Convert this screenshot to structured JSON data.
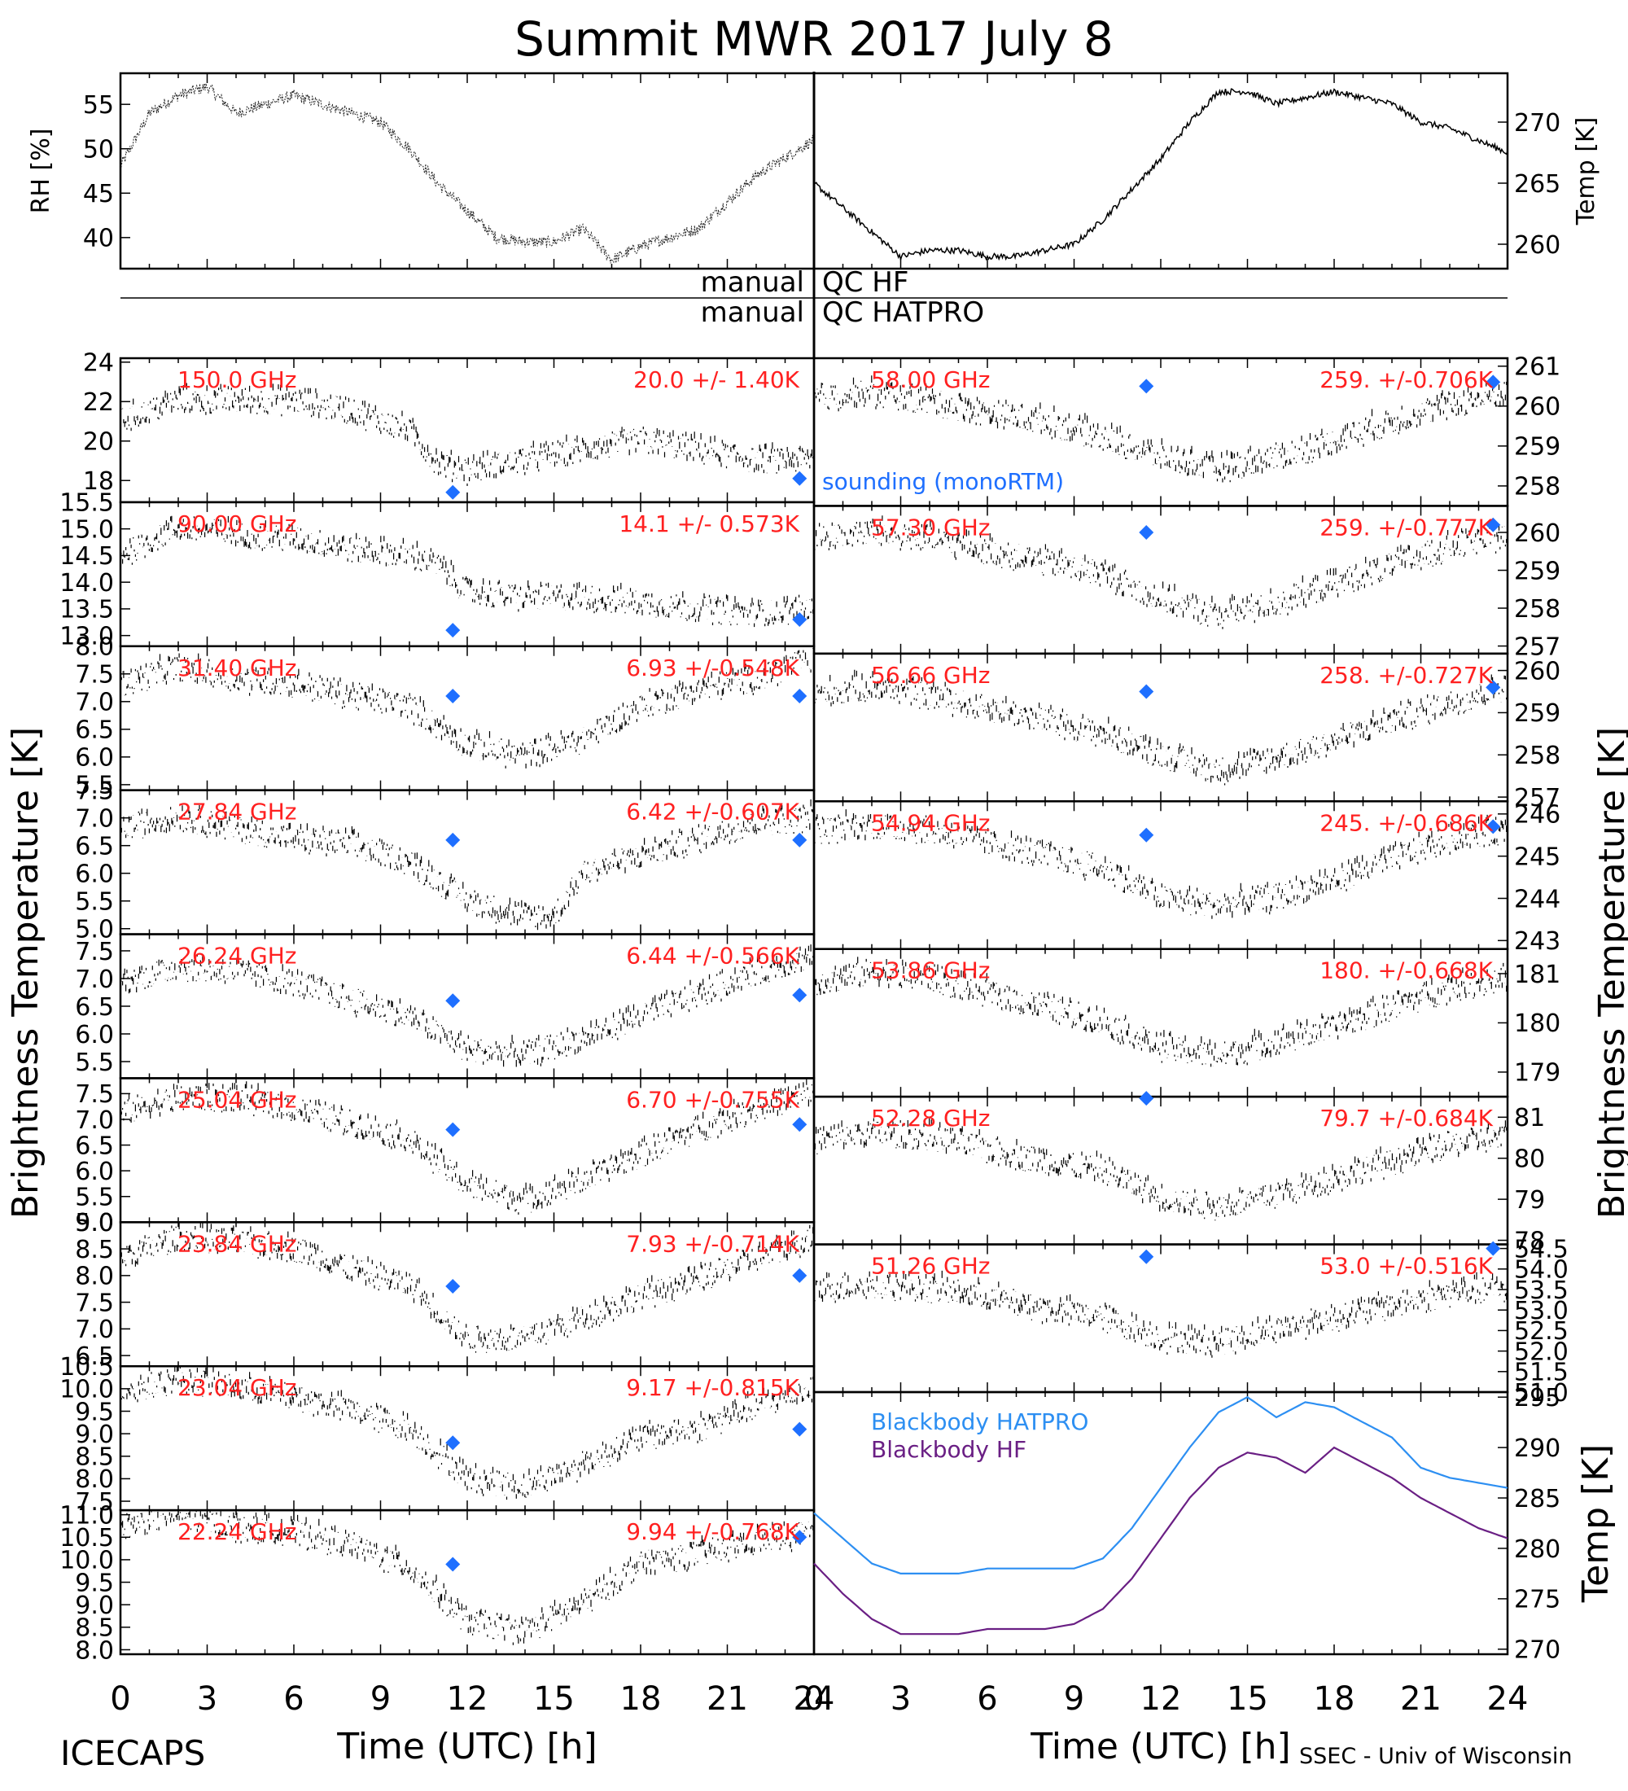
{
  "title": "Summit MWR 2017 July  8",
  "footer": {
    "left": "ICECAPS",
    "right": "SSEC - Univ of Wisconsin"
  },
  "qc": {
    "left_1": "manual",
    "right_1": "QC HF",
    "left_2": "manual",
    "right_2": "QC HATPRO"
  },
  "colors": {
    "label": "#ff2020",
    "sounding": "#1e6fff",
    "bb_hatpro": "#2d8ff2",
    "bb_hf": "#6a1f84",
    "data": "#000000"
  },
  "legend": {
    "sounding": "sounding (monoRTM)",
    "bb_hatpro": "Blackbody HATPRO",
    "bb_hf": "Blackbody HF"
  },
  "axes": {
    "ylabel_left": "Brightness Temperature [K]",
    "ylabel_right": "Brightness Temperature [K]",
    "xlabel": "Time (UTC) [h]",
    "xticks": [
      "0",
      "3",
      "6",
      "9",
      "12",
      "15",
      "18",
      "21",
      "24"
    ]
  },
  "chart_data": [
    {
      "type": "line",
      "id": "rh",
      "ylabel": "RH [%]",
      "xlim": [
        0,
        24
      ],
      "ylim": [
        36.5,
        58.5
      ],
      "yticks": [
        40,
        45,
        50,
        55
      ],
      "x": [
        0,
        1,
        2,
        3,
        4,
        5,
        6,
        7,
        8,
        9,
        10,
        11,
        12,
        13,
        14,
        15,
        16,
        17,
        18,
        19,
        20,
        21,
        22,
        23,
        24
      ],
      "y": [
        48,
        54,
        56,
        57,
        54,
        55,
        56,
        55,
        54,
        53,
        50,
        46,
        43,
        40,
        39.5,
        39.5,
        41,
        37.5,
        39,
        40,
        41,
        44,
        47,
        49,
        51
      ]
    },
    {
      "type": "line",
      "id": "temp",
      "ylabel": "Temp [K]",
      "xlim": [
        0,
        24
      ],
      "ylim": [
        258,
        274
      ],
      "yticks": [
        260,
        265,
        270
      ],
      "x": [
        0,
        1,
        2,
        3,
        4,
        5,
        6,
        7,
        8,
        9,
        10,
        11,
        12,
        13,
        14,
        15,
        16,
        17,
        18,
        19,
        20,
        21,
        22,
        23,
        24
      ],
      "y": [
        265,
        263,
        261,
        259,
        259.5,
        259.5,
        259,
        259,
        259.5,
        260,
        262,
        264.5,
        267,
        270,
        272.5,
        272.5,
        271.5,
        272,
        272.5,
        272,
        271.5,
        270,
        269.5,
        268.5,
        267.5
      ]
    },
    {
      "type": "scatter",
      "id": "c150",
      "channel": "150.0 GHz",
      "stat": "20.0 +/-  1.40K",
      "ylim": [
        16.9,
        24.2
      ],
      "yticks": [
        "18",
        "20",
        "22",
        "24"
      ],
      "ytick_vals": [
        18,
        20,
        22,
        24
      ],
      "x": [
        0,
        2,
        4,
        6,
        8,
        10,
        11,
        12,
        14,
        16,
        18,
        20,
        22,
        24
      ],
      "y": [
        21,
        22,
        22,
        22,
        21.5,
        20.5,
        18.8,
        18.5,
        19,
        19.5,
        20,
        19.5,
        19,
        19
      ],
      "sounding": [
        [
          11.5,
          17.4
        ],
        [
          23.5,
          18.1
        ]
      ],
      "legend": true
    },
    {
      "type": "scatter",
      "id": "c90",
      "channel": "90.00 GHz",
      "stat": "14.1 +/- 0.573K",
      "ylim": [
        12.8,
        15.5
      ],
      "yticks": [
        "13.0",
        "13.5",
        "14.0",
        "14.5",
        "15.0",
        "15.5"
      ],
      "ytick_vals": [
        13,
        13.5,
        14,
        14.5,
        15,
        15.5
      ],
      "x": [
        0,
        2,
        4,
        6,
        8,
        10,
        11,
        12,
        14,
        16,
        18,
        20,
        22,
        24
      ],
      "y": [
        14.5,
        15,
        14.9,
        14.8,
        14.6,
        14.5,
        14.3,
        13.8,
        13.7,
        13.7,
        13.6,
        13.5,
        13.4,
        13.5
      ],
      "sounding": [
        [
          11.5,
          13.1
        ],
        [
          23.5,
          13.3
        ]
      ]
    },
    {
      "type": "scatter",
      "id": "c3140",
      "channel": "31.40 GHz",
      "stat": "6.93 +/-0.548K",
      "ylim": [
        5.4,
        8.0
      ],
      "yticks": [
        "5.5",
        "6.0",
        "6.5",
        "7.0",
        "7.5",
        "8.0"
      ],
      "ytick_vals": [
        5.5,
        6,
        6.5,
        7,
        7.5,
        8
      ],
      "x": [
        0,
        2,
        4,
        6,
        8,
        10,
        12,
        14,
        16,
        18,
        20,
        22,
        24
      ],
      "y": [
        7.3,
        7.6,
        7.4,
        7.3,
        7.1,
        6.9,
        6.2,
        6.0,
        6.3,
        6.9,
        7.2,
        7.4,
        7.8
      ],
      "sounding": [
        [
          11.5,
          7.1
        ],
        [
          23.5,
          7.1
        ]
      ]
    },
    {
      "type": "scatter",
      "id": "c2784",
      "channel": "27.84 GHz",
      "stat": "6.42 +/-0.607K",
      "ylim": [
        4.9,
        7.5
      ],
      "yticks": [
        "5.0",
        "5.5",
        "6.0",
        "6.5",
        "7.0",
        "7.5"
      ],
      "ytick_vals": [
        5,
        5.5,
        6,
        6.5,
        7,
        7.5
      ],
      "x": [
        0,
        2,
        4,
        6,
        8,
        10,
        12,
        14,
        15,
        16,
        18,
        20,
        22,
        24
      ],
      "y": [
        6.8,
        7.0,
        6.8,
        6.6,
        6.5,
        6.2,
        5.5,
        5.2,
        5.2,
        6.0,
        6.3,
        6.6,
        6.9,
        7.0
      ],
      "sounding": [
        [
          11.5,
          6.6
        ],
        [
          23.5,
          6.6
        ]
      ]
    },
    {
      "type": "scatter",
      "id": "c2624",
      "channel": "26.24 GHz",
      "stat": "6.44 +/-0.566K",
      "ylim": [
        5.2,
        7.8
      ],
      "yticks": [
        "5.5",
        "6.0",
        "6.5",
        "7.0",
        "7.5"
      ],
      "ytick_vals": [
        5.5,
        6,
        6.5,
        7,
        7.5
      ],
      "x": [
        0,
        2,
        4,
        6,
        8,
        10,
        12,
        14,
        16,
        18,
        20,
        22,
        24
      ],
      "y": [
        6.9,
        7.2,
        7.1,
        6.9,
        6.6,
        6.3,
        5.7,
        5.6,
        5.9,
        6.3,
        6.7,
        7.1,
        7.4
      ],
      "sounding": [
        [
          11.5,
          6.6
        ],
        [
          23.5,
          6.7
        ]
      ]
    },
    {
      "type": "scatter",
      "id": "c2504",
      "channel": "25.04 GHz",
      "stat": "6.70 +/-0.755K",
      "ylim": [
        5.0,
        7.8
      ],
      "yticks": [
        "5.0",
        "5.5",
        "6.0",
        "6.5",
        "7.0",
        "7.5"
      ],
      "ytick_vals": [
        5,
        5.5,
        6,
        6.5,
        7,
        7.5
      ],
      "x": [
        0,
        2,
        4,
        6,
        8,
        10,
        12,
        14,
        16,
        18,
        20,
        22,
        24
      ],
      "y": [
        7.1,
        7.4,
        7.4,
        7.2,
        6.9,
        6.6,
        5.7,
        5.4,
        5.8,
        6.3,
        6.8,
        7.2,
        7.5
      ],
      "sounding": [
        [
          11.5,
          6.8
        ],
        [
          23.5,
          6.9
        ]
      ]
    },
    {
      "type": "scatter",
      "id": "c2384",
      "channel": "23.84 GHz",
      "stat": "7.93 +/-0.714K",
      "ylim": [
        6.3,
        9.0
      ],
      "yticks": [
        "6.5",
        "7.0",
        "7.5",
        "8.0",
        "8.5",
        "9.0"
      ],
      "ytick_vals": [
        6.5,
        7,
        7.5,
        8,
        8.5,
        9
      ],
      "x": [
        0,
        2,
        4,
        6,
        8,
        10,
        12,
        14,
        16,
        18,
        20,
        22,
        24
      ],
      "y": [
        8.3,
        8.7,
        8.6,
        8.5,
        8.1,
        7.8,
        6.8,
        6.8,
        7.2,
        7.6,
        7.9,
        8.3,
        8.7
      ],
      "sounding": [
        [
          11.5,
          7.8
        ],
        [
          23.5,
          8.0
        ]
      ]
    },
    {
      "type": "scatter",
      "id": "c2304",
      "channel": "23.04 GHz",
      "stat": "9.17 +/-0.815K",
      "ylim": [
        7.3,
        10.5
      ],
      "yticks": [
        "7.5",
        "8.0",
        "8.5",
        "9.0",
        "9.5",
        "10.0",
        "10.5"
      ],
      "ytick_vals": [
        7.5,
        8,
        8.5,
        9,
        9.5,
        10,
        10.5
      ],
      "x": [
        0,
        2,
        4,
        6,
        8,
        10,
        12,
        14,
        16,
        18,
        20,
        22,
        24
      ],
      "y": [
        9.9,
        10.2,
        10.0,
        9.8,
        9.5,
        9.1,
        8.0,
        7.8,
        8.3,
        8.9,
        9.1,
        9.6,
        10.0
      ],
      "sounding": [
        [
          11.5,
          8.8
        ],
        [
          23.5,
          9.1
        ]
      ]
    },
    {
      "type": "scatter",
      "id": "c2224",
      "channel": "22.24 GHz",
      "stat": "9.94 +/-0.768K",
      "ylim": [
        7.9,
        11.1
      ],
      "yticks": [
        "8.0",
        "8.5",
        "9.0",
        "9.5",
        "10.0",
        "10.5",
        "11.0"
      ],
      "ytick_vals": [
        8,
        8.5,
        9,
        9.5,
        10,
        10.5,
        11
      ],
      "x": [
        0,
        2,
        4,
        6,
        8,
        10,
        12,
        14,
        16,
        18,
        20,
        22,
        24
      ],
      "y": [
        10.7,
        11.0,
        10.7,
        10.6,
        10.3,
        9.8,
        8.6,
        8.4,
        9.0,
        9.9,
        10.1,
        10.4,
        10.6
      ],
      "sounding": [
        [
          11.5,
          9.9
        ],
        [
          23.5,
          10.5
        ]
      ]
    },
    {
      "type": "scatter",
      "id": "c5800",
      "channel": "58.00 GHz",
      "stat": "259. +/-0.706K",
      "ylim": [
        257.5,
        261.2
      ],
      "yticks": [
        "258",
        "259",
        "260",
        "261"
      ],
      "ytick_vals": [
        258,
        259,
        260,
        261
      ],
      "x": [
        0,
        2,
        4,
        6,
        8,
        10,
        12,
        14,
        16,
        18,
        20,
        22,
        24
      ],
      "y": [
        260.2,
        260.3,
        260.1,
        259.8,
        259.6,
        259.2,
        258.7,
        258.4,
        258.7,
        259.1,
        259.6,
        260.0,
        260.3
      ],
      "sounding": [
        [
          11.5,
          260.5
        ],
        [
          23.5,
          260.6
        ]
      ]
    },
    {
      "type": "scatter",
      "id": "c5730",
      "channel": "57.30 GHz",
      "stat": "259. +/-0.777K",
      "ylim": [
        256.8,
        260.7
      ],
      "yticks": [
        "257",
        "258",
        "259",
        "260"
      ],
      "ytick_vals": [
        257,
        258,
        259,
        260
      ],
      "x": [
        0,
        2,
        4,
        6,
        8,
        10,
        12,
        14,
        16,
        18,
        20,
        22,
        24
      ],
      "y": [
        259.8,
        260.0,
        259.8,
        259.5,
        259.2,
        258.9,
        258.2,
        257.8,
        258.1,
        258.6,
        259.1,
        259.6,
        259.9
      ],
      "sounding": [
        [
          11.5,
          260.0
        ],
        [
          23.5,
          260.2
        ]
      ]
    },
    {
      "type": "scatter",
      "id": "c5666",
      "channel": "56.66 GHz",
      "stat": "258. +/-0.727K",
      "ylim": [
        256.9,
        260.4
      ],
      "yticks": [
        "257",
        "258",
        "259",
        "260"
      ],
      "ytick_vals": [
        257,
        258,
        259,
        260
      ],
      "x": [
        0,
        2,
        4,
        6,
        8,
        10,
        12,
        14,
        16,
        18,
        20,
        22,
        24
      ],
      "y": [
        259.4,
        259.6,
        259.4,
        259.1,
        258.8,
        258.5,
        258.0,
        257.6,
        257.9,
        258.3,
        258.8,
        259.2,
        259.6
      ],
      "sounding": [
        [
          11.5,
          259.5
        ],
        [
          23.5,
          259.6
        ]
      ]
    },
    {
      "type": "scatter",
      "id": "c5494",
      "channel": "54.94 GHz",
      "stat": "245. +/-0.686K",
      "ylim": [
        242.8,
        246.3
      ],
      "yticks": [
        "243",
        "244",
        "245",
        "246"
      ],
      "ytick_vals": [
        243,
        244,
        245,
        246
      ],
      "x": [
        0,
        2,
        4,
        6,
        8,
        10,
        12,
        14,
        16,
        18,
        20,
        22,
        24
      ],
      "y": [
        245.6,
        245.7,
        245.6,
        245.3,
        245.0,
        244.7,
        244.0,
        243.8,
        244.0,
        244.4,
        244.9,
        245.4,
        245.6
      ],
      "sounding": [
        [
          11.5,
          245.5
        ],
        [
          23.5,
          245.7
        ]
      ]
    },
    {
      "type": "scatter",
      "id": "c5386",
      "channel": "53.86 GHz",
      "stat": "180. +/-0.668K",
      "ylim": [
        178.5,
        181.5
      ],
      "yticks": [
        "179",
        "180",
        "181"
      ],
      "ytick_vals": [
        179,
        180,
        181
      ],
      "x": [
        0,
        2,
        4,
        6,
        8,
        10,
        12,
        14,
        16,
        18,
        20,
        22,
        24
      ],
      "y": [
        180.8,
        181.0,
        180.9,
        180.6,
        180.3,
        180.0,
        179.5,
        179.3,
        179.6,
        179.9,
        180.3,
        180.7,
        180.9
      ],
      "sounding": []
    },
    {
      "type": "scatter",
      "id": "c5228",
      "channel": "52.28 GHz",
      "stat": "79.7 +/-0.684K",
      "ylim": [
        77.9,
        81.5
      ],
      "yticks": [
        "78",
        "79",
        "80",
        "81"
      ],
      "ytick_vals": [
        78,
        79,
        80,
        81
      ],
      "x": [
        0,
        2,
        4,
        6,
        8,
        10,
        12,
        14,
        16,
        18,
        20,
        22,
        24
      ],
      "y": [
        80.4,
        80.6,
        80.5,
        80.2,
        79.9,
        79.7,
        79.0,
        78.8,
        79.1,
        79.5,
        79.9,
        80.3,
        80.5
      ],
      "sounding": [
        [
          11.5,
          81.5
        ]
      ]
    },
    {
      "type": "scatter",
      "id": "c5126",
      "channel": "51.26 GHz",
      "stat": "53.0 +/-0.516K",
      "ylim": [
        51.0,
        54.6
      ],
      "yticks": [
        "51.0",
        "51.5",
        "52.0",
        "52.5",
        "53.0",
        "53.5",
        "54.0",
        "54.5"
      ],
      "ytick_vals": [
        51,
        51.5,
        52,
        52.5,
        53,
        53.5,
        54,
        54.5
      ],
      "x": [
        0,
        2,
        4,
        6,
        8,
        10,
        12,
        14,
        16,
        18,
        20,
        22,
        24
      ],
      "y": [
        53.5,
        53.6,
        53.5,
        53.3,
        53.0,
        52.8,
        52.3,
        52.2,
        52.5,
        52.8,
        53.1,
        53.4,
        53.5
      ],
      "sounding": [
        [
          11.5,
          54.3
        ],
        [
          23.5,
          54.5
        ]
      ]
    },
    {
      "type": "line",
      "id": "blackbody",
      "ylabel": "Temp [K]",
      "xlim": [
        0,
        24
      ],
      "ylim": [
        269.5,
        295.5
      ],
      "yticks": [
        "270",
        "275",
        "280",
        "285",
        "290",
        "295"
      ],
      "ytick_vals": [
        270,
        275,
        280,
        285,
        290,
        295
      ],
      "series": [
        {
          "name": "Blackbody HATPRO",
          "x": [
            0,
            1,
            2,
            3,
            4,
            5,
            6,
            7,
            8,
            9,
            10,
            11,
            12,
            13,
            14,
            15,
            16,
            17,
            18,
            19,
            20,
            21,
            22,
            23,
            24
          ],
          "y": [
            283.5,
            281,
            278.5,
            277.5,
            277.5,
            277.5,
            278,
            278,
            278,
            278,
            279,
            282,
            286,
            290,
            293.5,
            295,
            293,
            294.5,
            294,
            292.5,
            291,
            288,
            287,
            286.5,
            286
          ]
        },
        {
          "name": "Blackbody HF",
          "x": [
            0,
            1,
            2,
            3,
            4,
            5,
            6,
            7,
            8,
            9,
            10,
            11,
            12,
            13,
            14,
            15,
            16,
            17,
            18,
            19,
            20,
            21,
            22,
            23,
            24
          ],
          "y": [
            278.5,
            275.5,
            273,
            271.5,
            271.5,
            271.5,
            272,
            272,
            272,
            272.5,
            274,
            277,
            281,
            285,
            288,
            289.5,
            289,
            287.5,
            290,
            288.5,
            287,
            285,
            283.5,
            282,
            281
          ]
        }
      ]
    }
  ]
}
